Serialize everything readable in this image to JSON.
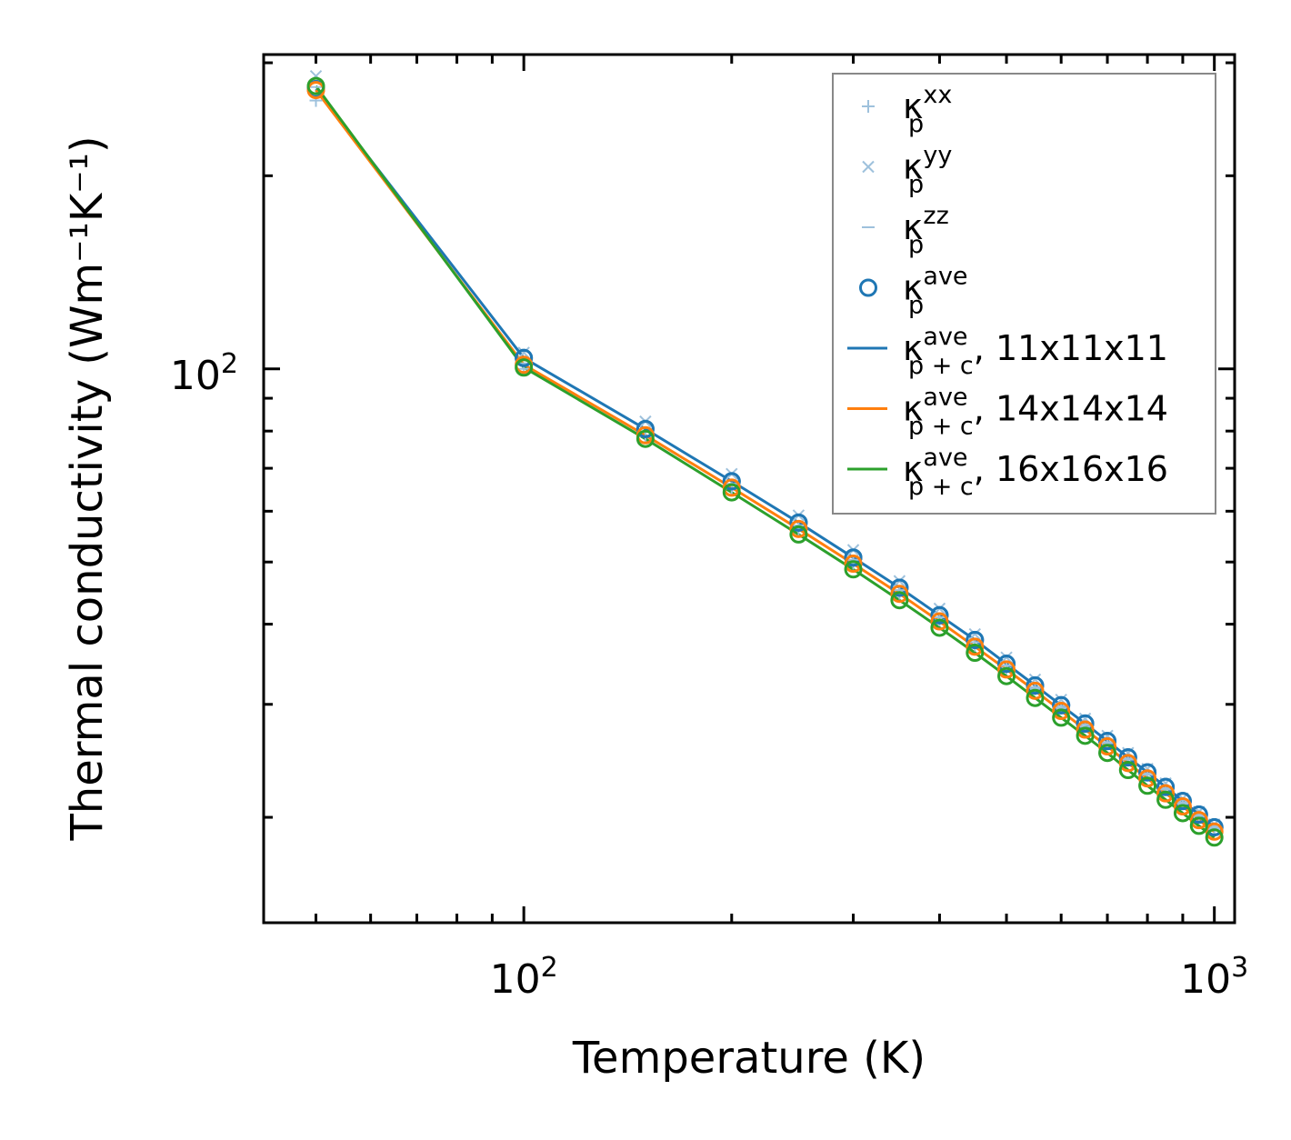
{
  "chart_data": {
    "type": "line",
    "title": "",
    "xlabel": "Temperature (K)",
    "ylabel": "Thermal conductivity (Wm⁻¹K⁻¹)",
    "xscale": "log",
    "yscale": "log",
    "xlim": [
      42,
      1070
    ],
    "ylim": [
      13.7,
      309
    ],
    "grid": false,
    "legend_position": "top-right",
    "x_tick_labels": [
      {
        "value": 100,
        "base": "10",
        "exp": "2"
      },
      {
        "value": 1000,
        "base": "10",
        "exp": "3"
      }
    ],
    "y_tick_labels": [
      {
        "value": 100,
        "base": "10",
        "exp": "2"
      }
    ],
    "x": [
      50,
      100,
      150,
      200,
      250,
      300,
      350,
      400,
      450,
      500,
      550,
      600,
      650,
      700,
      750,
      800,
      850,
      900,
      950,
      1000
    ],
    "markers": [
      {
        "name": "kappa_p_xx",
        "label_main": "κ",
        "label_sup": "xx",
        "label_sub": "p",
        "marker": "plus",
        "color": "#9ec1dc",
        "values": [
          262,
          100,
          78.5,
          65.1,
          56.3,
          49.8,
          44.7,
          40.6,
          37.1,
          34.2,
          31.7,
          29.6,
          27.7,
          26.1,
          24.6,
          23.3,
          22.1,
          21.0,
          20.1,
          19.2
        ]
      },
      {
        "name": "kappa_p_yy",
        "label_main": "κ",
        "label_sup": "yy",
        "label_sub": "p",
        "marker": "x",
        "color": "#9ec1dc",
        "values": [
          286,
          106,
          82.8,
          68.6,
          59.1,
          52.2,
          46.7,
          42.3,
          38.6,
          35.5,
          32.8,
          30.5,
          28.5,
          26.8,
          25.2,
          23.8,
          22.6,
          21.4,
          20.4,
          19.5
        ]
      },
      {
        "name": "kappa_p_zz",
        "label_main": "κ",
        "label_sup": "zz",
        "label_sub": "p",
        "marker": "dash",
        "color": "#9ec1dc",
        "values": [
          275,
          102,
          79.8,
          66.2,
          57.0,
          50.4,
          45.2,
          41.0,
          37.5,
          34.5,
          31.9,
          29.8,
          27.9,
          26.2,
          24.7,
          23.4,
          22.2,
          21.1,
          20.2,
          19.3
        ]
      },
      {
        "name": "kappa_p_ave",
        "label_main": "κ",
        "label_sup": "ave",
        "label_sub": "p",
        "marker": "circle",
        "color": "#1f77b4",
        "values": [
          273,
          104,
          80.6,
          66.8,
          57.6,
          50.8,
          45.6,
          41.3,
          37.8,
          34.7,
          32.1,
          29.9,
          28.0,
          26.3,
          24.8,
          23.5,
          22.3,
          21.2,
          20.2,
          19.3
        ]
      }
    ],
    "series": [
      {
        "name": "kappa_pc_11",
        "label_main": "κ",
        "label_sup": "ave",
        "label_sub": "p + c",
        "label_suffix": ", 11x11x11",
        "color": "#1f77b4",
        "values": [
          273,
          104,
          80.6,
          66.8,
          57.6,
          50.8,
          45.6,
          41.3,
          37.8,
          34.7,
          32.1,
          29.9,
          28.0,
          26.3,
          24.8,
          23.5,
          22.3,
          21.2,
          20.2,
          19.3
        ]
      },
      {
        "name": "kappa_pc_14",
        "label_main": "κ",
        "label_sup": "ave",
        "label_sub": "p + c",
        "label_suffix": ", 14x14x14",
        "color": "#ff7f0e",
        "values": [
          272,
          101.5,
          78.8,
          65.3,
          56.3,
          49.7,
          44.6,
          40.4,
          36.9,
          34.0,
          31.5,
          29.3,
          27.4,
          25.8,
          24.3,
          23.0,
          21.8,
          20.8,
          19.8,
          19.0
        ]
      },
      {
        "name": "kappa_pc_16",
        "label_main": "κ",
        "label_sup": "ave",
        "label_sub": "p + c",
        "label_suffix": ", 16x16x16",
        "color": "#2ca02c",
        "values": [
          276,
          100.5,
          77.8,
          64.2,
          55.2,
          48.7,
          43.6,
          39.5,
          36.1,
          33.2,
          30.7,
          28.6,
          26.8,
          25.2,
          23.7,
          22.4,
          21.3,
          20.3,
          19.4,
          18.6
        ]
      }
    ]
  }
}
